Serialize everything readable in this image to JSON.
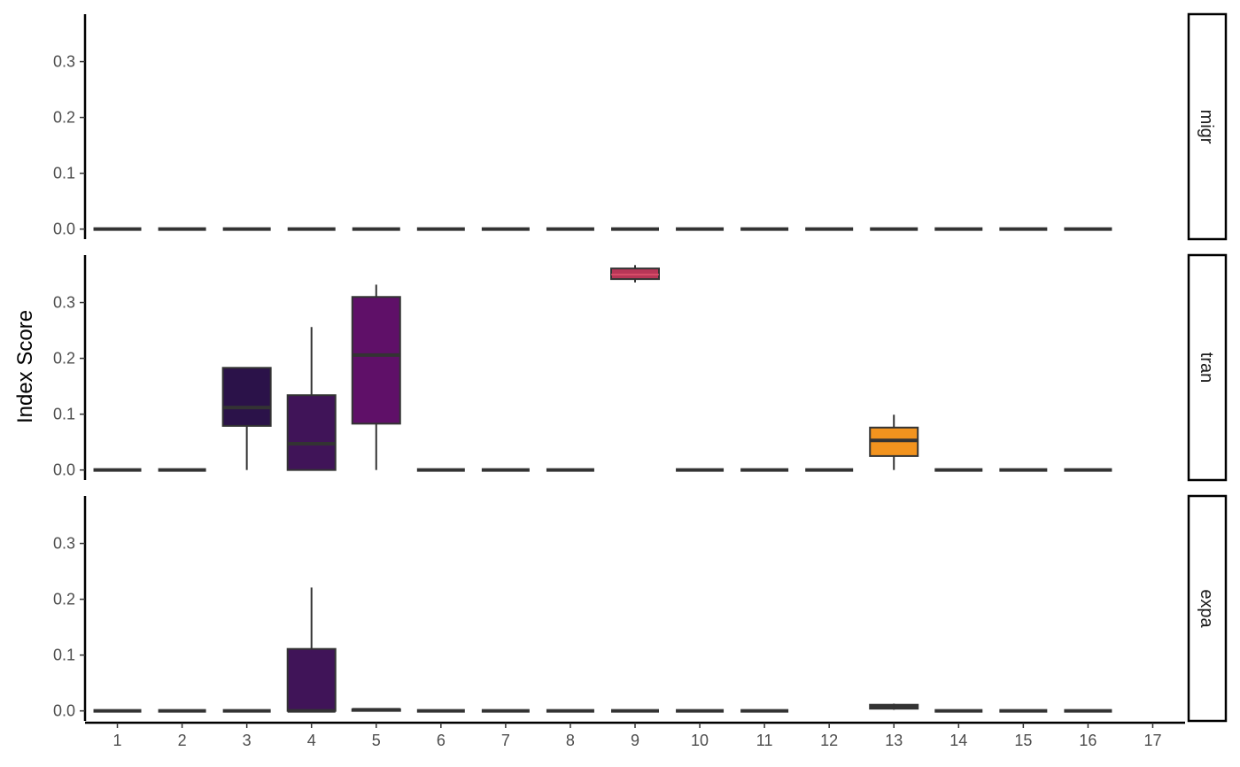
{
  "chart_data": {
    "type": "box",
    "ylabel": "Index Score",
    "xlabel": "",
    "x_categories": [
      "1",
      "2",
      "3",
      "4",
      "5",
      "6",
      "7",
      "8",
      "9",
      "10",
      "11",
      "12",
      "13",
      "14",
      "15",
      "16",
      "17"
    ],
    "y_ticks": [
      0.0,
      0.1,
      0.2,
      0.3
    ],
    "y_tick_labels": [
      "0.0",
      "0.1",
      "0.2",
      "0.3"
    ],
    "ylim": [
      -0.018,
      0.385
    ],
    "fill_colors": {
      "3": "#2b1249",
      "4": "#401458",
      "5": "#5f1068",
      "9": "#b83657",
      "13": "#f2931e"
    },
    "default_fill": "#ffffff",
    "outline_color": "#333333",
    "panels": [
      {
        "strip": "migr",
        "boxes": [
          {
            "x": "1",
            "min": 0,
            "q1": 0,
            "median": 0,
            "q3": 0,
            "max": 0
          },
          {
            "x": "2",
            "min": 0,
            "q1": 0,
            "median": 0,
            "q3": 0,
            "max": 0
          },
          {
            "x": "3",
            "min": 0,
            "q1": 0,
            "median": 0,
            "q3": 0,
            "max": 0
          },
          {
            "x": "4",
            "min": 0,
            "q1": 0,
            "median": 0,
            "q3": 0,
            "max": 0
          },
          {
            "x": "5",
            "min": 0,
            "q1": 0,
            "median": 0,
            "q3": 0,
            "max": 0
          },
          {
            "x": "6",
            "min": 0,
            "q1": 0,
            "median": 0,
            "q3": 0,
            "max": 0
          },
          {
            "x": "7",
            "min": 0,
            "q1": 0,
            "median": 0,
            "q3": 0,
            "max": 0
          },
          {
            "x": "8",
            "min": 0,
            "q1": 0,
            "median": 0,
            "q3": 0,
            "max": 0
          },
          {
            "x": "9",
            "min": 0,
            "q1": 0,
            "median": 0,
            "q3": 0,
            "max": 0
          },
          {
            "x": "10",
            "min": 0,
            "q1": 0,
            "median": 0,
            "q3": 0,
            "max": 0
          },
          {
            "x": "11",
            "min": 0,
            "q1": 0,
            "median": 0,
            "q3": 0,
            "max": 0
          },
          {
            "x": "12",
            "min": 0,
            "q1": 0,
            "median": 0,
            "q3": 0,
            "max": 0
          },
          {
            "x": "13",
            "min": 0,
            "q1": 0,
            "median": 0,
            "q3": 0,
            "max": 0
          },
          {
            "x": "14",
            "min": 0,
            "q1": 0,
            "median": 0,
            "q3": 0,
            "max": 0
          },
          {
            "x": "15",
            "min": 0,
            "q1": 0,
            "median": 0,
            "q3": 0,
            "max": 0
          },
          {
            "x": "16",
            "min": 0,
            "q1": 0,
            "median": 0,
            "q3": 0,
            "max": 0
          }
        ]
      },
      {
        "strip": "tran",
        "boxes": [
          {
            "x": "1",
            "min": 0,
            "q1": 0,
            "median": 0,
            "q3": 0,
            "max": 0
          },
          {
            "x": "2",
            "min": 0,
            "q1": 0,
            "median": 0,
            "q3": 0,
            "max": 0
          },
          {
            "x": "3",
            "min": 0.0,
            "q1": 0.079,
            "median": 0.112,
            "q3": 0.183,
            "max": 0.183
          },
          {
            "x": "4",
            "min": 0.0,
            "q1": 0.0,
            "median": 0.047,
            "q3": 0.134,
            "max": 0.256
          },
          {
            "x": "5",
            "min": 0.0,
            "q1": 0.083,
            "median": 0.206,
            "q3": 0.31,
            "max": 0.332
          },
          {
            "x": "6",
            "min": 0,
            "q1": 0,
            "median": 0,
            "q3": 0,
            "max": 0
          },
          {
            "x": "7",
            "min": 0,
            "q1": 0,
            "median": 0,
            "q3": 0,
            "max": 0
          },
          {
            "x": "8",
            "min": 0,
            "q1": 0,
            "median": 0,
            "q3": 0,
            "max": 0
          },
          {
            "x": "9",
            "min": 0.336,
            "q1": 0.342,
            "median": 0.35,
            "q3": 0.361,
            "max": 0.367
          },
          {
            "x": "10",
            "min": 0,
            "q1": 0,
            "median": 0,
            "q3": 0,
            "max": 0
          },
          {
            "x": "11",
            "min": 0,
            "q1": 0,
            "median": 0,
            "q3": 0,
            "max": 0
          },
          {
            "x": "12",
            "min": 0,
            "q1": 0,
            "median": 0,
            "q3": 0,
            "max": 0
          },
          {
            "x": "13",
            "min": 0.0,
            "q1": 0.025,
            "median": 0.053,
            "q3": 0.076,
            "max": 0.099
          },
          {
            "x": "14",
            "min": 0,
            "q1": 0,
            "median": 0,
            "q3": 0,
            "max": 0
          },
          {
            "x": "15",
            "min": 0,
            "q1": 0,
            "median": 0,
            "q3": 0,
            "max": 0
          },
          {
            "x": "16",
            "min": 0,
            "q1": 0,
            "median": 0,
            "q3": 0,
            "max": 0
          }
        ]
      },
      {
        "strip": "expa",
        "boxes": [
          {
            "x": "1",
            "min": 0,
            "q1": 0,
            "median": 0,
            "q3": 0,
            "max": 0
          },
          {
            "x": "2",
            "min": 0,
            "q1": 0,
            "median": 0,
            "q3": 0,
            "max": 0
          },
          {
            "x": "3",
            "min": 0,
            "q1": 0,
            "median": 0,
            "q3": 0,
            "max": 0
          },
          {
            "x": "4",
            "min": 0.0,
            "q1": 0.0,
            "median": 0.0,
            "q3": 0.111,
            "max": 0.221
          },
          {
            "x": "5",
            "min": 0.0,
            "q1": 0.0,
            "median": 0.002,
            "q3": 0.003,
            "max": 0.003
          },
          {
            "x": "6",
            "min": 0,
            "q1": 0,
            "median": 0,
            "q3": 0,
            "max": 0
          },
          {
            "x": "7",
            "min": 0,
            "q1": 0,
            "median": 0,
            "q3": 0,
            "max": 0
          },
          {
            "x": "8",
            "min": 0,
            "q1": 0,
            "median": 0,
            "q3": 0,
            "max": 0
          },
          {
            "x": "9",
            "min": 0,
            "q1": 0,
            "median": 0,
            "q3": 0,
            "max": 0
          },
          {
            "x": "10",
            "min": 0,
            "q1": 0,
            "median": 0,
            "q3": 0,
            "max": 0
          },
          {
            "x": "11",
            "min": 0,
            "q1": 0,
            "median": 0,
            "q3": 0,
            "max": 0
          },
          {
            "x": "13",
            "min": 0.002,
            "q1": 0.004,
            "median": 0.008,
            "q3": 0.011,
            "max": 0.013
          },
          {
            "x": "14",
            "min": 0,
            "q1": 0,
            "median": 0,
            "q3": 0,
            "max": 0
          },
          {
            "x": "15",
            "min": 0,
            "q1": 0,
            "median": 0,
            "q3": 0,
            "max": 0
          },
          {
            "x": "16",
            "min": 0,
            "q1": 0,
            "median": 0,
            "q3": 0,
            "max": 0
          }
        ]
      }
    ]
  }
}
